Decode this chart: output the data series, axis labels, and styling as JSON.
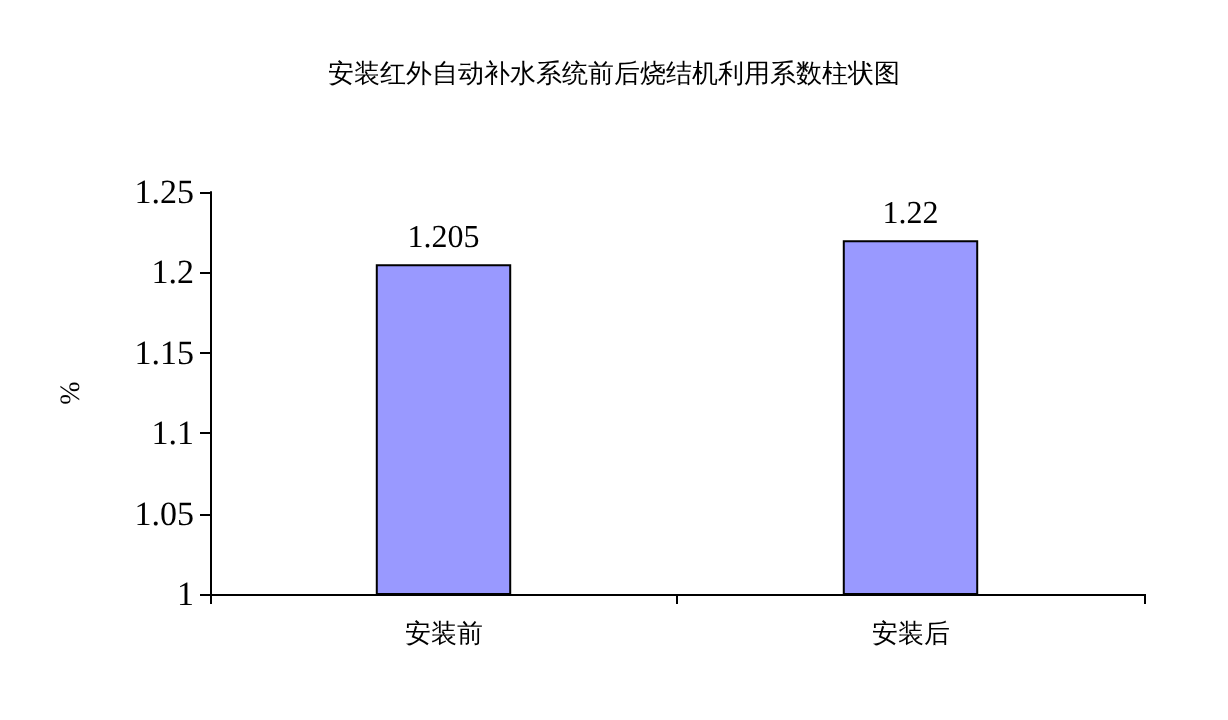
{
  "chart_data": {
    "type": "bar",
    "title": "安装红外自动补水系统前后烧结机利用系数柱状图",
    "ylabel": "%",
    "categories": [
      "安装前",
      "安装后"
    ],
    "series": [
      {
        "color": "#9999ff",
        "values": [
          1.205,
          1.22
        ]
      }
    ],
    "ylim": [
      1,
      1.25
    ],
    "yticks": [
      1,
      1.05,
      1.1,
      1.15,
      1.2,
      1.25
    ],
    "data_labels": true,
    "grid": false
  }
}
